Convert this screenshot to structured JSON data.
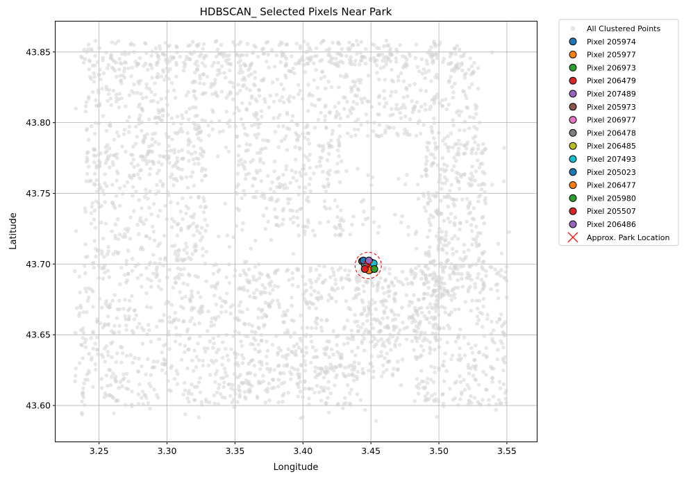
{
  "chart_data": {
    "type": "scatter",
    "title": "HDBSCAN_ Selected Pixels Near Park",
    "xlabel": "Longitude",
    "ylabel": "Latitude",
    "xlim": [
      3.218,
      3.572
    ],
    "ylim": [
      43.5745,
      43.8715
    ],
    "x_ticks": [
      "3.25",
      "3.30",
      "3.35",
      "3.40",
      "3.45",
      "3.50",
      "3.55"
    ],
    "y_ticks": [
      "43.60",
      "43.65",
      "43.70",
      "43.75",
      "43.80",
      "43.85"
    ],
    "grid": true,
    "legend_position": "outside-upper-right",
    "background": {
      "name": "All Clustered Points",
      "color": "#d3d3d3",
      "approx_extent": {
        "x": [
          3.232,
          3.553
        ],
        "y": [
          43.589,
          43.858
        ]
      },
      "clusters": [
        {
          "x": [
            3.235,
            3.52
          ],
          "y": [
            43.84,
            43.858
          ],
          "n": 250
        },
        {
          "x": [
            3.24,
            3.33
          ],
          "y": [
            43.77,
            43.85
          ],
          "n": 300
        },
        {
          "x": [
            3.33,
            3.53
          ],
          "y": [
            43.79,
            43.85
          ],
          "n": 450
        },
        {
          "x": [
            3.24,
            3.33
          ],
          "y": [
            43.7,
            43.78
          ],
          "n": 250
        },
        {
          "x": [
            3.35,
            3.43
          ],
          "y": [
            43.72,
            43.79
          ],
          "n": 200
        },
        {
          "x": [
            3.43,
            3.51
          ],
          "y": [
            43.72,
            43.77
          ],
          "n": 100
        },
        {
          "x": [
            3.232,
            3.36
          ],
          "y": [
            43.6,
            43.7
          ],
          "n": 450
        },
        {
          "x": [
            3.36,
            3.47
          ],
          "y": [
            43.62,
            43.7
          ],
          "n": 350
        },
        {
          "x": [
            3.35,
            3.44
          ],
          "y": [
            43.6,
            43.63
          ],
          "n": 120
        },
        {
          "x": [
            3.48,
            3.55
          ],
          "y": [
            43.6,
            43.7
          ],
          "n": 280
        },
        {
          "x": [
            3.49,
            3.535
          ],
          "y": [
            43.68,
            43.79
          ],
          "n": 260
        },
        {
          "x": [
            3.44,
            3.5
          ],
          "y": [
            43.64,
            43.7
          ],
          "n": 150
        },
        {
          "x": [
            3.232,
            3.553
          ],
          "y": [
            43.589,
            43.858
          ],
          "n": 400
        }
      ]
    },
    "series": [
      {
        "name": "Pixel 205974",
        "color": "#1f77b4",
        "x": 3.4445,
        "y": 43.7015
      },
      {
        "name": "Pixel 205977",
        "color": "#ff7f0e",
        "x": 3.4495,
        "y": 43.696
      },
      {
        "name": "Pixel 206973",
        "color": "#2ca02c",
        "x": 3.447,
        "y": 43.698
      },
      {
        "name": "Pixel 206479",
        "color": "#d62728",
        "x": 3.4465,
        "y": 43.7
      },
      {
        "name": "Pixel 207489",
        "color": "#9467bd",
        "x": 3.4505,
        "y": 43.701
      },
      {
        "name": "Pixel 205973",
        "color": "#8c564b",
        "x": 3.4435,
        "y": 43.702
      },
      {
        "name": "Pixel 206977",
        "color": "#e377c2",
        "x": 3.45,
        "y": 43.6975
      },
      {
        "name": "Pixel 206478",
        "color": "#7f7f7f",
        "x": 3.4455,
        "y": 43.6995
      },
      {
        "name": "Pixel 206485",
        "color": "#bcbd22",
        "x": 3.4515,
        "y": 43.6985
      },
      {
        "name": "Pixel 207493",
        "color": "#17becf",
        "x": 3.452,
        "y": 43.7005
      },
      {
        "name": "Pixel 205023",
        "color": "#1f77b4",
        "x": 3.4445,
        "y": 43.7025
      },
      {
        "name": "Pixel 206477",
        "color": "#ff7f0e",
        "x": 3.4485,
        "y": 43.6955
      },
      {
        "name": "Pixel 205980",
        "color": "#2ca02c",
        "x": 3.4525,
        "y": 43.6965
      },
      {
        "name": "Pixel 205507",
        "color": "#d62728",
        "x": 3.4455,
        "y": 43.6965
      },
      {
        "name": "Pixel 206486",
        "color": "#9467bd",
        "x": 3.4485,
        "y": 43.7025
      }
    ],
    "park": {
      "name": "Approx. Park Location",
      "x": 3.448,
      "y": 43.699,
      "marker": "x",
      "color": "#ff0000"
    }
  }
}
